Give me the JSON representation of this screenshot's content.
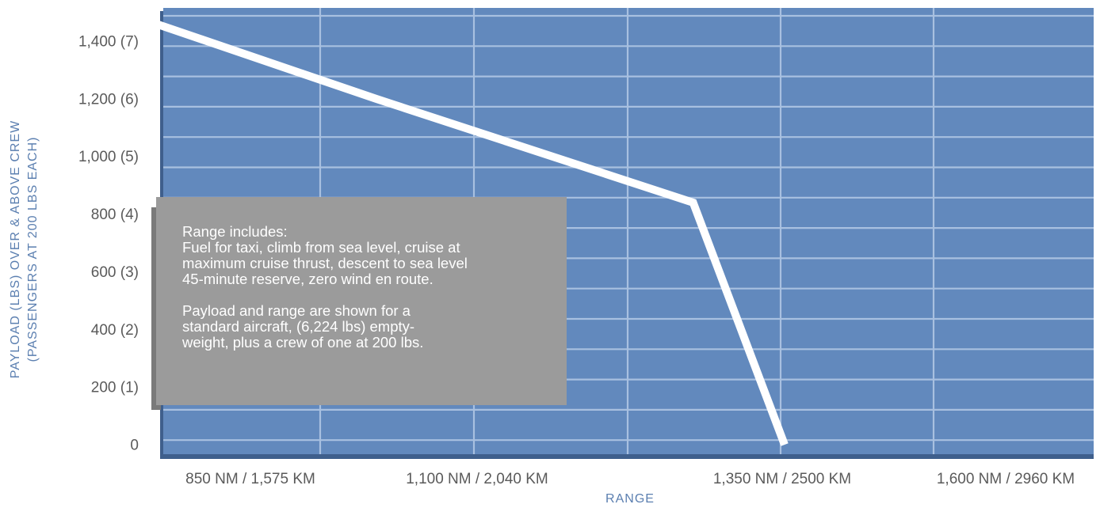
{
  "chart_data": {
    "type": "line",
    "xlabel": "RANGE",
    "ylabel": [
      "PAYLOAD (LBS) OVER & ABOVE CREW",
      "(PASSENGERS AT 200 LBS EACH)"
    ],
    "x_tick_labels": [
      "850 NM / 1,575 KM",
      "1,100 NM / 2,040 KM",
      "1,350 NM / 2500 KM",
      "1,600 NM / 2960 KM"
    ],
    "y_tick_labels": [
      "0",
      "200 (1)",
      "400 (2)",
      "600 (3)",
      "800 (4)",
      "1,000 (5)",
      "1,200 (6)",
      "1,400 (7)"
    ],
    "y_tick_values": [
      0,
      200,
      400,
      600,
      800,
      1000,
      1200,
      1400
    ],
    "ylim": [
      0,
      1500
    ],
    "series": [
      {
        "x_nm": [
          812,
          1020,
          1280,
          1355
        ],
        "y_lbs": [
          1500,
          1200,
          840,
          0
        ]
      }
    ],
    "grid": true,
    "colors": {
      "plot_bg": "#6289bd",
      "plot_edge": "#3f5f8c",
      "grid": "#a8c0e0",
      "line": "#ffffff",
      "note_bg": "#9b9b9b",
      "note_edge": "#7a7a7a",
      "tick_text": "#5a5a5a",
      "axis_title": "#5b7fb0"
    }
  },
  "note": {
    "heading": "Range includes:",
    "lines": [
      "Fuel for taxi, climb from sea level, cruise at",
      "maximum cruise thrust, descent to sea level",
      "45-minute reserve, zero wind en route.",
      "",
      "Payload and range are shown for a",
      "standard aircraft, (6,224 lbs) empty-",
      "weight, plus a crew of one at 200 lbs."
    ]
  }
}
